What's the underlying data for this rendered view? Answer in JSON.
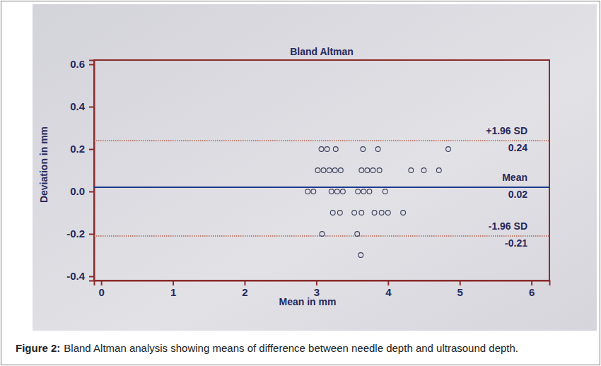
{
  "chart_data": {
    "type": "scatter",
    "title": "Bland Altman",
    "x_label": "Mean in mm",
    "y_label": "Deviation in mm",
    "caption_label": "Figure 2:",
    "caption": "Bland Altman analysis showing means of difference between needle depth and ultrasound depth.",
    "xlim": [
      -0.1,
      6.25
    ],
    "xticks": [
      0,
      1,
      2,
      3,
      4,
      5,
      6
    ],
    "ylim": [
      -0.42,
      0.62
    ],
    "yticks": [
      -0.4,
      -0.2,
      {
        "value": 0,
        "label": "0.0"
      },
      0.2,
      0.4,
      0.6
    ],
    "grid": false,
    "marker": "circle",
    "color": "#3a3f5c",
    "x": [
      3.07,
      3.15,
      3.27,
      3.65,
      3.86,
      4.84,
      3.02,
      3.1,
      3.18,
      3.26,
      3.34,
      3.63,
      3.71,
      3.79,
      3.88,
      4.32,
      4.5,
      4.71,
      2.88,
      2.96,
      3.21,
      3.29,
      3.37,
      3.58,
      3.66,
      3.74,
      3.96,
      3.23,
      3.33,
      3.53,
      3.63,
      3.81,
      3.91,
      4.0,
      4.21,
      3.08,
      3.57,
      3.62
    ],
    "values": [
      0.2,
      0.2,
      0.2,
      0.2,
      0.2,
      0.2,
      0.1,
      0.1,
      0.1,
      0.1,
      0.1,
      0.1,
      0.1,
      0.1,
      0.1,
      0.1,
      0.1,
      0.1,
      0,
      0,
      0,
      0,
      0,
      0,
      0,
      0,
      0,
      -0.1,
      -0.1,
      -0.1,
      -0.1,
      -0.1,
      -0.1,
      -0.1,
      -0.1,
      -0.2,
      -0.2,
      -0.3
    ],
    "reference_lines": [
      {
        "label": "+1.96 SD",
        "value": 0.24,
        "color": "#b0614f",
        "line_style": "dotted"
      },
      {
        "label": "Mean",
        "value": 0.02,
        "color": "#1f3a8f",
        "line_style": "solid"
      },
      {
        "label": "-1.96 SD",
        "value": -0.21,
        "color": "#b0614f",
        "line_style": "dotted"
      }
    ]
  }
}
